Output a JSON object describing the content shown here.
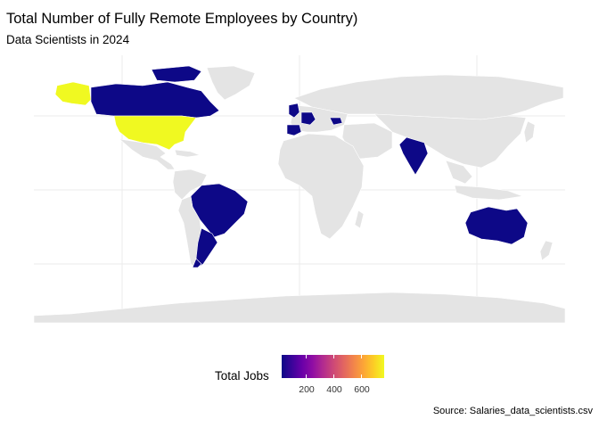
{
  "title": "Total Number of Fully Remote Employees by Country)",
  "subtitle": "Data Scientists in 2024",
  "caption": "Source: Salaries_data_scientists.csv",
  "legend": {
    "title": "Total Jobs",
    "ticks": [
      "200",
      "400",
      "600"
    ],
    "palette": [
      "#0d0887",
      "#6a00a8",
      "#b12a90",
      "#e16462",
      "#fca636",
      "#f0f921"
    ]
  },
  "colors": {
    "no_data": "#e4e4e4",
    "borders": "#ffffff",
    "grid": "#ebebeb",
    "high": "#f0f921",
    "low": "#0d0887"
  },
  "map_data": {
    "type": "choropleth",
    "highlighted_countries": [
      {
        "name": "United States",
        "level": "high"
      },
      {
        "name": "Alaska",
        "level": "high"
      },
      {
        "name": "Canada",
        "level": "low"
      },
      {
        "name": "Brazil",
        "level": "low"
      },
      {
        "name": "Argentina",
        "level": "low"
      },
      {
        "name": "United Kingdom",
        "level": "low"
      },
      {
        "name": "France",
        "level": "low"
      },
      {
        "name": "Spain",
        "level": "low"
      },
      {
        "name": "Poland",
        "level": "low"
      },
      {
        "name": "India",
        "level": "low"
      },
      {
        "name": "Australia",
        "level": "low"
      }
    ]
  }
}
